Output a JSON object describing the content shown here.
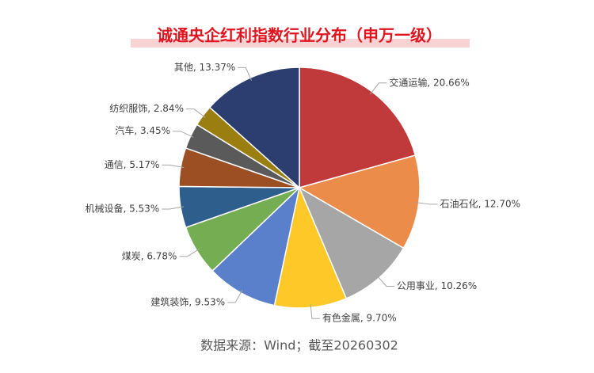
{
  "chart_data": {
    "type": "pie",
    "title": "诚通央企红利指数行业分布（申万一级）",
    "labels": [
      "交通运输, 20.66%",
      "石油石化, 12.70%",
      "公用事业, 10.26%",
      "有色金属, 9.70%",
      "建筑装饰, 9.53%",
      "煤炭, 6.78%",
      "机械设备, 5.53%",
      "通信, 5.17%",
      "汽车, 3.45%",
      "纺织服饰, 2.84%",
      "其他, 13.37%"
    ],
    "values": [
      20.66,
      12.7,
      10.26,
      9.7,
      9.53,
      6.78,
      5.53,
      5.17,
      3.45,
      2.84,
      13.37
    ],
    "colors": [
      "#c0393b",
      "#ec8c4a",
      "#a6a6a6",
      "#fdc828",
      "#5a7fcb",
      "#74ad52",
      "#2e5f8c",
      "#9c4f22",
      "#5a5a5a",
      "#9b7e10",
      "#2b3e6f"
    ],
    "source": "数据来源：Wind；截至20260302"
  }
}
